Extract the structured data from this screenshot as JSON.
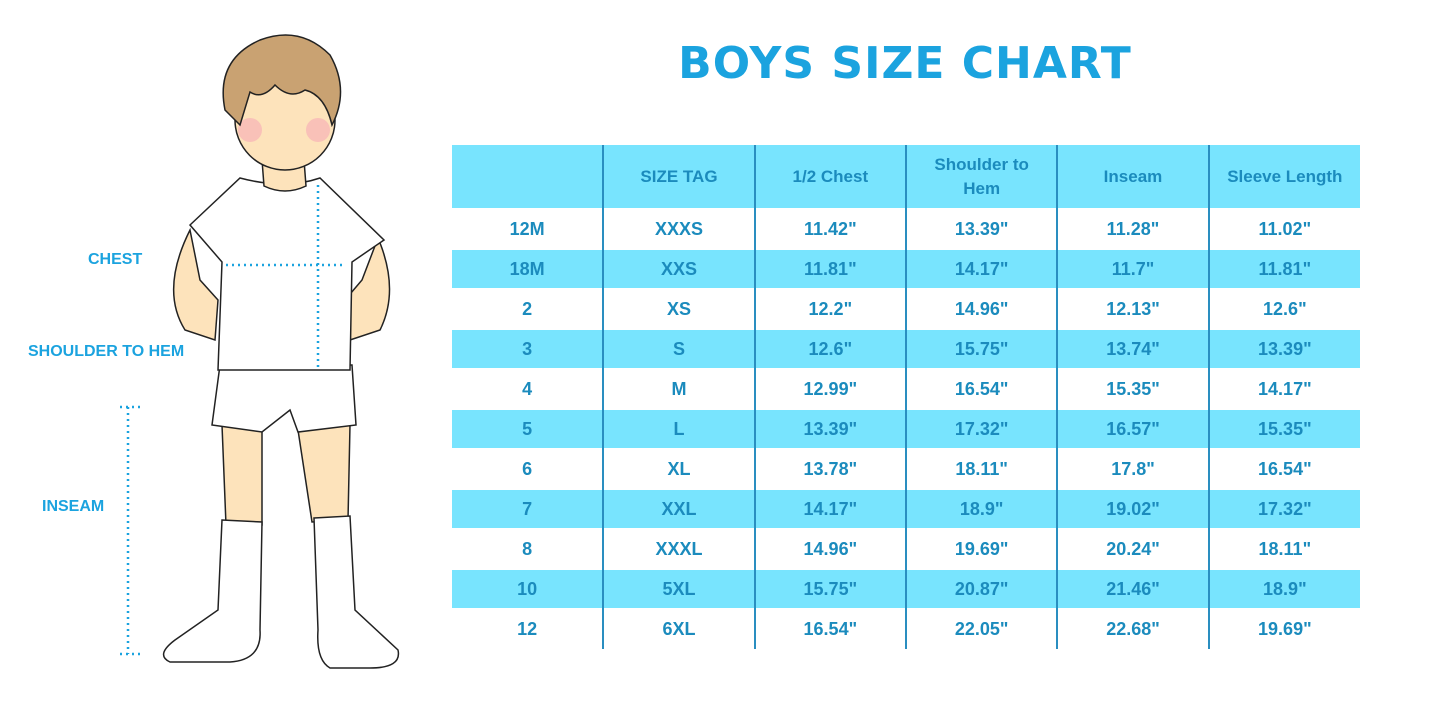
{
  "title": "BOYS SIZE CHART",
  "figure_labels": {
    "chest": "CHEST",
    "shoulder_to_hem": "SHOULDER TO HEM",
    "inseam": "INSEAM"
  },
  "colors": {
    "accent": "#1ba3df",
    "row_highlight": "#78e4fe",
    "text": "#1b8bbd"
  },
  "table": {
    "headers": [
      "",
      "SIZE TAG",
      "1/2 Chest",
      "Shoulder to Hem",
      "Inseam",
      "Sleeve Length"
    ],
    "rows": [
      [
        "12M",
        "XXXS",
        "11.42\"",
        "13.39\"",
        "11.28\"",
        "11.02\""
      ],
      [
        "18M",
        "XXS",
        "11.81\"",
        "14.17\"",
        "11.7\"",
        "11.81\""
      ],
      [
        "2",
        "XS",
        "12.2\"",
        "14.96\"",
        "12.13\"",
        "12.6\""
      ],
      [
        "3",
        "S",
        "12.6\"",
        "15.75\"",
        "13.74\"",
        "13.39\""
      ],
      [
        "4",
        "M",
        "12.99\"",
        "16.54\"",
        "15.35\"",
        "14.17\""
      ],
      [
        "5",
        "L",
        "13.39\"",
        "17.32\"",
        "16.57\"",
        "15.35\""
      ],
      [
        "6",
        "XL",
        "13.78\"",
        "18.11\"",
        "17.8\"",
        "16.54\""
      ],
      [
        "7",
        "XXL",
        "14.17\"",
        "18.9\"",
        "19.02\"",
        "17.32\""
      ],
      [
        "8",
        "XXXL",
        "14.96\"",
        "19.69\"",
        "20.24\"",
        "18.11\""
      ],
      [
        "10",
        "5XL",
        "15.75\"",
        "20.87\"",
        "21.46\"",
        "18.9\""
      ],
      [
        "12",
        "6XL",
        "16.54\"",
        "22.05\"",
        "22.68\"",
        "19.69\""
      ]
    ]
  }
}
